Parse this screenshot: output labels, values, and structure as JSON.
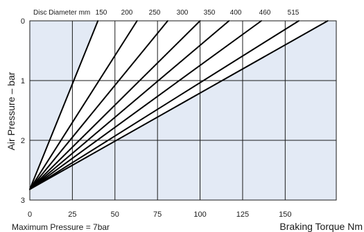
{
  "chart_data": {
    "type": "line",
    "xlabel": "Braking Torque Nm",
    "ylabel": "Air Pressure – bar",
    "xlim": [
      0,
      180
    ],
    "ylim": [
      0,
      3
    ],
    "y_inverted": true,
    "x_tick_labels": [
      "0",
      "25",
      "50",
      "75",
      "100",
      "125",
      "150"
    ],
    "x_ticks": [
      0,
      25,
      50,
      75,
      100,
      125,
      150
    ],
    "y_tick_labels": [
      "0",
      "1",
      "2",
      "3"
    ],
    "y_ticks": [
      0,
      1,
      2,
      3
    ],
    "grid": true,
    "top_axis_label": "Disc Diameter mm",
    "series": [
      {
        "name": "150",
        "points": [
          [
            0,
            2.82
          ],
          [
            40,
            0
          ]
        ]
      },
      {
        "name": "200",
        "points": [
          [
            0,
            2.82
          ],
          [
            63,
            0
          ]
        ]
      },
      {
        "name": "250",
        "points": [
          [
            0,
            2.82
          ],
          [
            81,
            0
          ]
        ]
      },
      {
        "name": "300",
        "points": [
          [
            0,
            2.82
          ],
          [
            100,
            0
          ]
        ]
      },
      {
        "name": "350",
        "points": [
          [
            0,
            2.82
          ],
          [
            117,
            0
          ]
        ]
      },
      {
        "name": "400",
        "points": [
          [
            0,
            2.82
          ],
          [
            136,
            0
          ]
        ]
      },
      {
        "name": "460",
        "points": [
          [
            0,
            2.82
          ],
          [
            158,
            0
          ]
        ]
      },
      {
        "name": "515",
        "points": [
          [
            0,
            2.82
          ],
          [
            175,
            0
          ]
        ]
      }
    ],
    "footnote": "Maximum Pressure = 7bar",
    "colors": {
      "plot_fill": "#e3eaf5",
      "line": "#000000",
      "grid": "#1a1a1a"
    }
  }
}
